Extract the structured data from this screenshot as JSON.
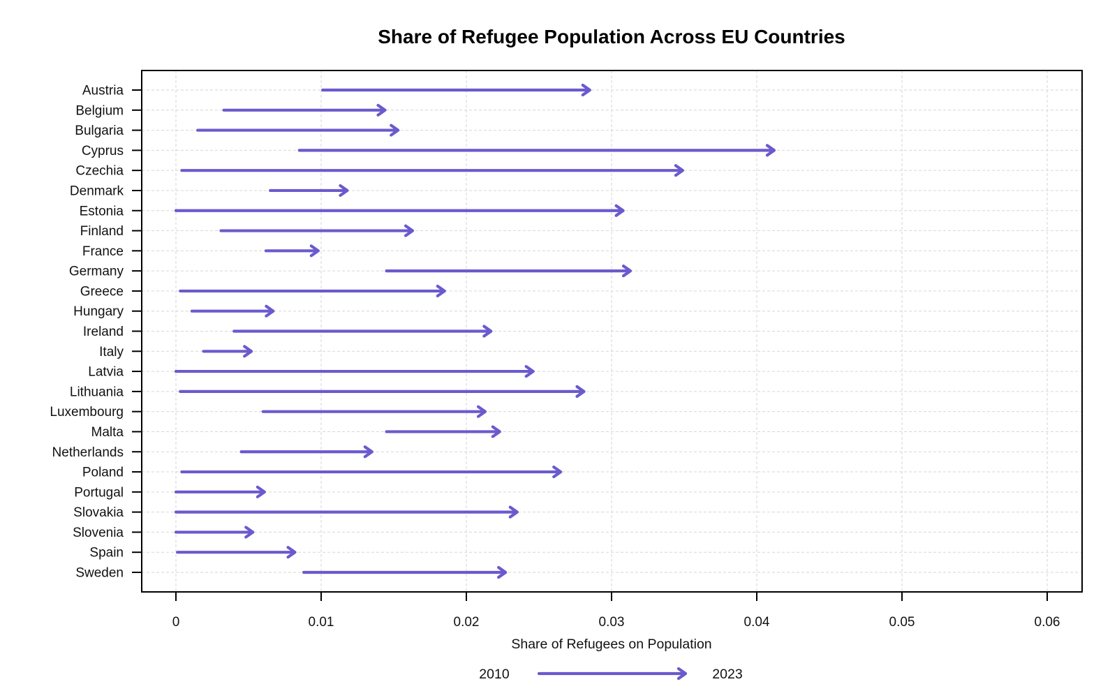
{
  "chart_data": {
    "type": "arrow",
    "title": "Share of Refugee Population Across EU Countries",
    "xlabel": "Share of Refugees on Population",
    "ylabel": "",
    "xlim": [
      0,
      0.06
    ],
    "xticks": [
      0,
      0.01,
      0.02,
      0.03,
      0.04,
      0.05,
      0.06
    ],
    "xtick_labels": [
      "0",
      "0.01",
      "0.02",
      "0.03",
      "0.04",
      "0.05",
      "0.06"
    ],
    "grid": true,
    "arrow_color": "#6a5acd",
    "legend": {
      "from_label": "2010",
      "to_label": "2023",
      "position": "bottom"
    },
    "categories": [
      "Austria",
      "Belgium",
      "Bulgaria",
      "Cyprus",
      "Czechia",
      "Denmark",
      "Estonia",
      "Finland",
      "France",
      "Germany",
      "Greece",
      "Hungary",
      "Ireland",
      "Italy",
      "Latvia",
      "Lithuania",
      "Luxembourg",
      "Malta",
      "Netherlands",
      "Poland",
      "Portugal",
      "Slovakia",
      "Slovenia",
      "Spain",
      "Sweden"
    ],
    "series": [
      {
        "name": "2010",
        "values": [
          0.0101,
          0.0033,
          0.0015,
          0.0085,
          0.0004,
          0.0065,
          0.0,
          0.0031,
          0.0062,
          0.0145,
          0.0003,
          0.0011,
          0.004,
          0.0019,
          0.0,
          0.0003,
          0.006,
          0.0145,
          0.0045,
          0.0004,
          0.0,
          0.0,
          0.0,
          0.0001,
          0.0088
        ]
      },
      {
        "name": "2023",
        "values": [
          0.0285,
          0.0144,
          0.0153,
          0.0412,
          0.0349,
          0.0118,
          0.0308,
          0.0163,
          0.0098,
          0.0313,
          0.0185,
          0.0067,
          0.0217,
          0.0052,
          0.0246,
          0.0281,
          0.0213,
          0.0223,
          0.0135,
          0.0265,
          0.0061,
          0.0235,
          0.0053,
          0.0082,
          0.0227
        ]
      }
    ]
  }
}
